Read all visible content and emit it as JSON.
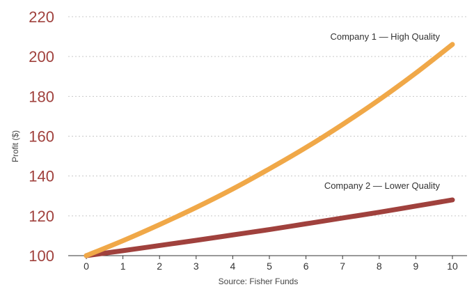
{
  "chart_data": {
    "type": "line",
    "xlabel": "Source: Fisher Funds",
    "ylabel": "Profit ($)",
    "ylim": [
      100,
      220
    ],
    "xlim": [
      0,
      10
    ],
    "yticks": [
      100,
      120,
      140,
      160,
      180,
      200,
      220
    ],
    "xticks": [
      0,
      1,
      2,
      3,
      4,
      5,
      6,
      7,
      8,
      9,
      10
    ],
    "grid": true,
    "x": [
      0,
      1,
      2,
      3,
      4,
      5,
      6,
      7,
      8,
      9,
      10
    ],
    "series": [
      {
        "name": "Company 1 — High Quality",
        "color": "#f0a848",
        "values": [
          100,
          107.5,
          115.6,
          124.2,
          133.5,
          143.6,
          154.3,
          165.9,
          178.3,
          191.7,
          206.1
        ]
      },
      {
        "name": "Company 2 — Lower Quality",
        "color": "#a0413d",
        "values": [
          100,
          102.5,
          105.1,
          107.7,
          110.4,
          113.1,
          116.0,
          118.9,
          121.8,
          124.9,
          128.0
        ]
      }
    ]
  }
}
